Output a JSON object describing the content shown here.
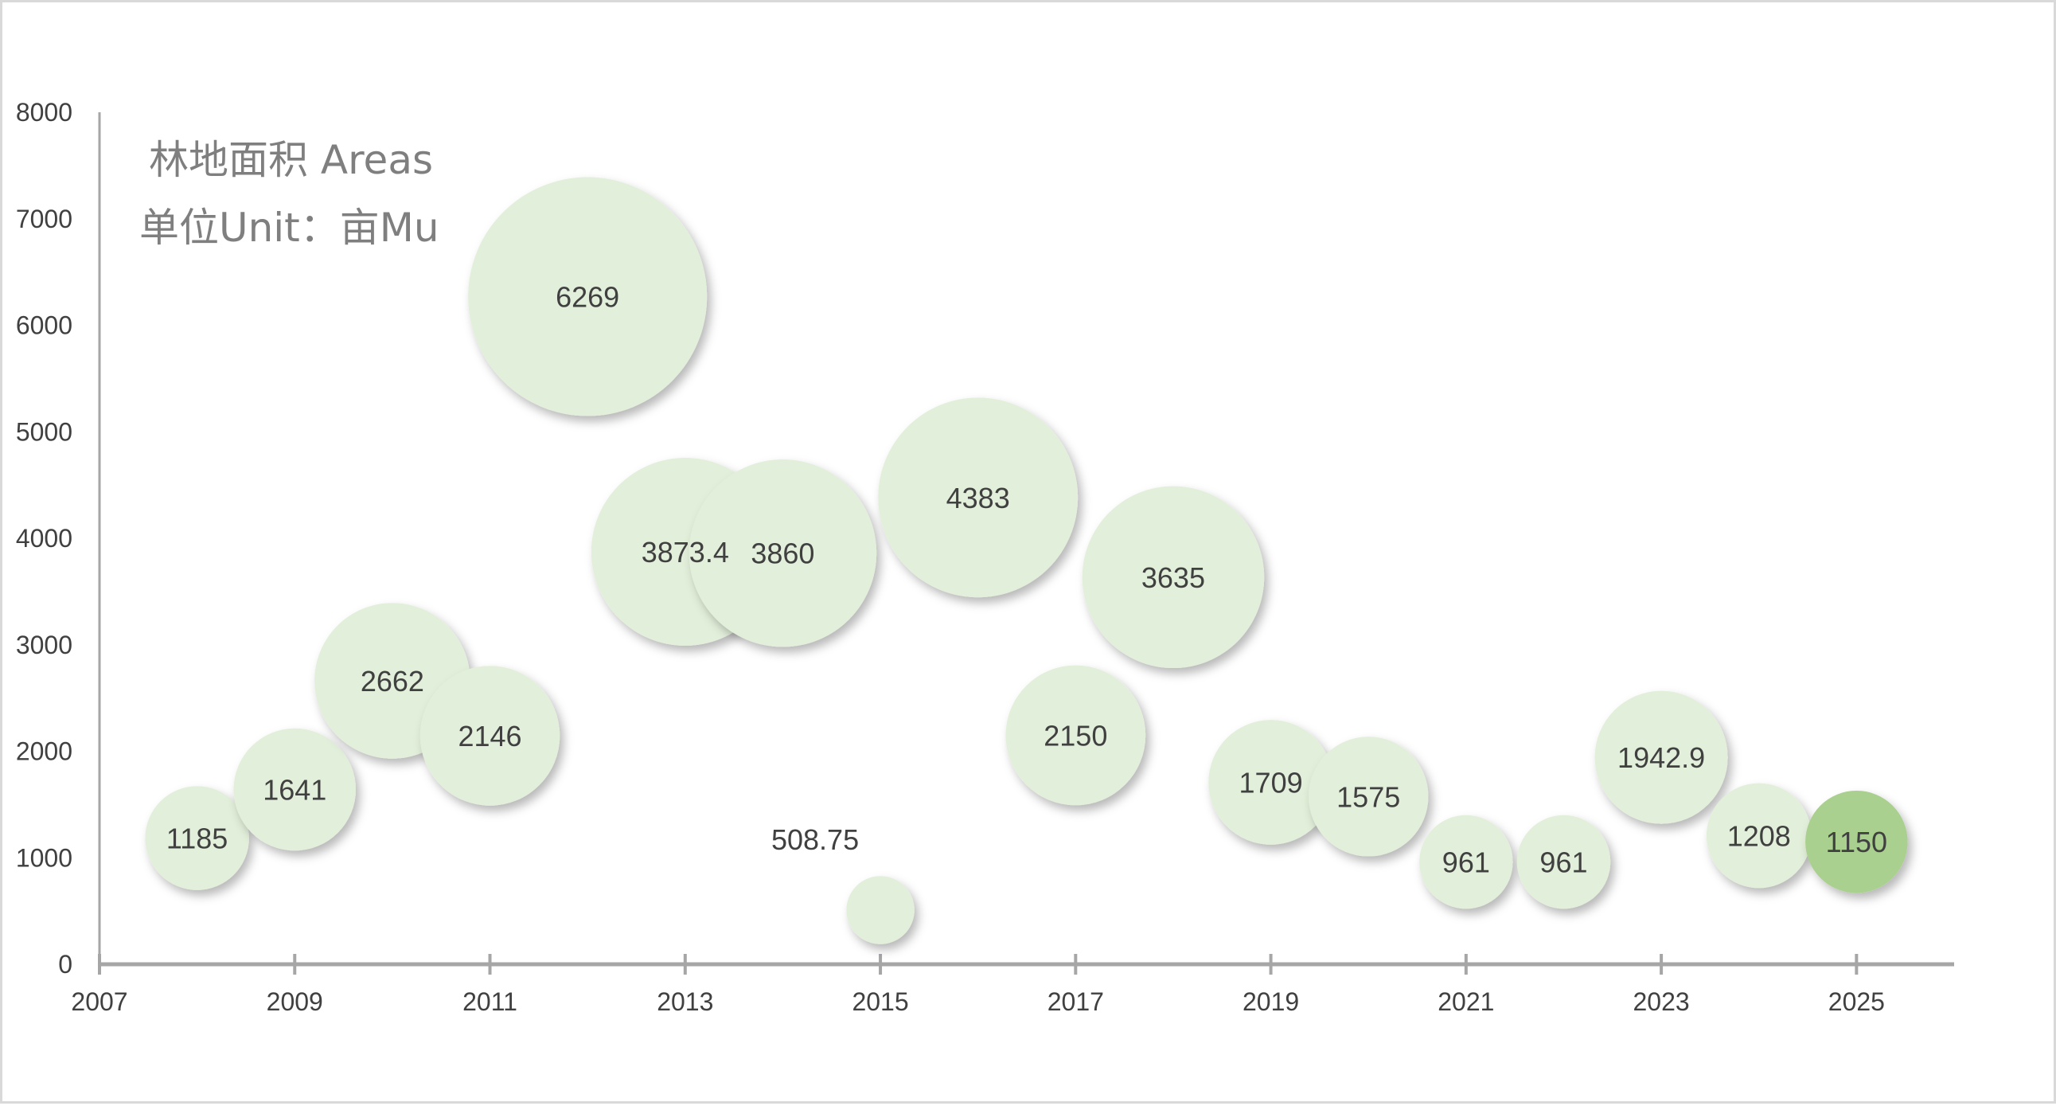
{
  "chart_data": {
    "type": "bubble",
    "title_lines": [
      "林地面积 Areas",
      "单位Unit：亩Mu"
    ],
    "xlabel": "",
    "ylabel": "",
    "xlim": [
      2007,
      2026
    ],
    "ylim": [
      0,
      8000
    ],
    "x_ticks": [
      2007,
      2009,
      2011,
      2013,
      2015,
      2017,
      2019,
      2021,
      2023,
      2025
    ],
    "y_ticks": [
      0,
      1000,
      2000,
      3000,
      4000,
      5000,
      6000,
      7000,
      8000
    ],
    "grid": false,
    "bubble_color": "#e2efda",
    "highlight_color": "#a9d08e",
    "label_color": "#404040",
    "axis_color": "#a6a6a6",
    "points": [
      {
        "x": 2008,
        "y": 1185,
        "label": "1185"
      },
      {
        "x": 2009,
        "y": 1641,
        "label": "1641"
      },
      {
        "x": 2010,
        "y": 2662,
        "label": "2662"
      },
      {
        "x": 2011,
        "y": 2146,
        "label": "2146"
      },
      {
        "x": 2012,
        "y": 6269,
        "label": "6269"
      },
      {
        "x": 2013,
        "y": 3873.4,
        "label": "3873.4"
      },
      {
        "x": 2014,
        "y": 3860,
        "label": "3860"
      },
      {
        "x": 2015,
        "y": 508.75,
        "label": "508.75"
      },
      {
        "x": 2016,
        "y": 4383,
        "label": "4383"
      },
      {
        "x": 2017,
        "y": 2150,
        "label": "2150"
      },
      {
        "x": 2018,
        "y": 3635,
        "label": "3635"
      },
      {
        "x": 2019,
        "y": 1709,
        "label": "1709"
      },
      {
        "x": 2020,
        "y": 1575,
        "label": "1575"
      },
      {
        "x": 2021,
        "y": 961,
        "label": "961"
      },
      {
        "x": 2022,
        "y": 961,
        "label": "961"
      },
      {
        "x": 2023,
        "y": 1942.9,
        "label": "1942.9"
      },
      {
        "x": 2024,
        "y": 1208,
        "label": "1208"
      },
      {
        "x": 2025,
        "y": 1150,
        "label": "1150",
        "highlight": true
      }
    ]
  }
}
